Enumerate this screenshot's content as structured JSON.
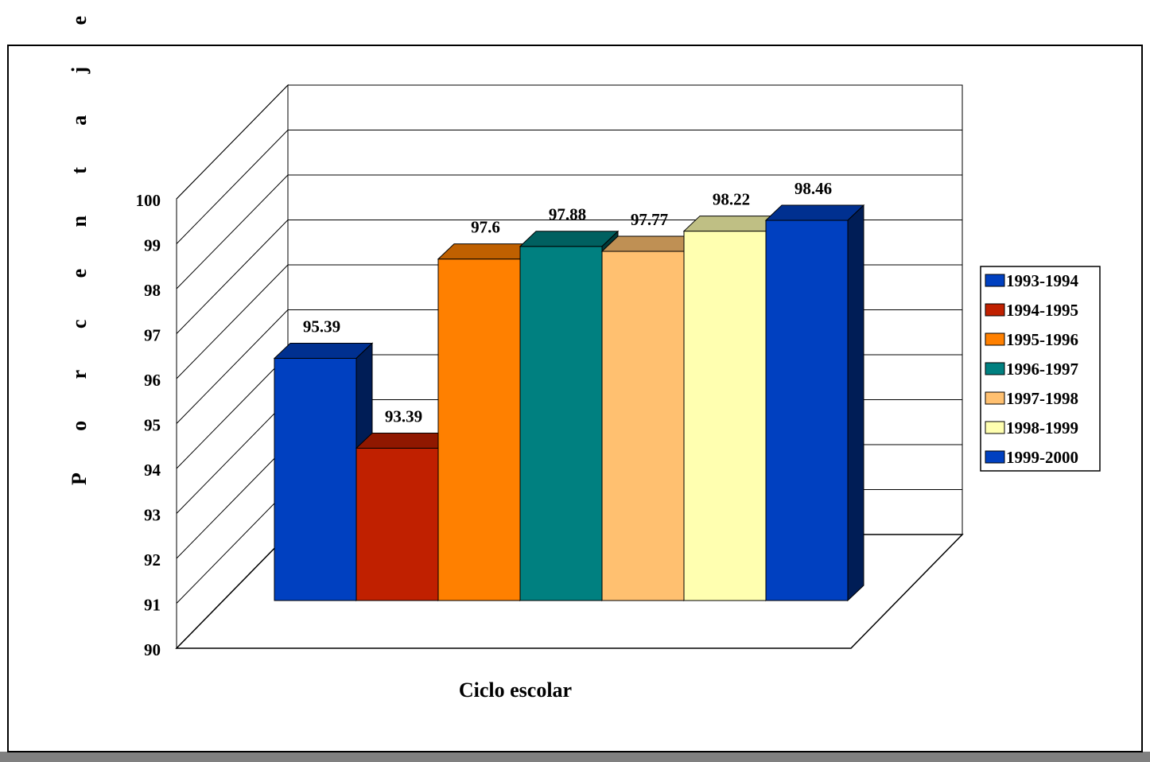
{
  "chart_data": {
    "type": "bar3d",
    "x_label": "Ciclo escolar",
    "y_label": "Porcentaje",
    "categories": [
      null
    ],
    "series": [
      {
        "name": "1993-1994",
        "color": "#0040c0",
        "values": [
          95.39
        ]
      },
      {
        "name": "1994-1995",
        "color": "#c02000",
        "values": [
          93.39
        ]
      },
      {
        "name": "1995-1996",
        "color": "#ff8000",
        "values": [
          97.6
        ]
      },
      {
        "name": "1996-1997",
        "color": "#008080",
        "values": [
          97.88
        ]
      },
      {
        "name": "1997-1998",
        "color": "#ffc070",
        "values": [
          97.77
        ]
      },
      {
        "name": "1998-1999",
        "color": "#ffffb0",
        "values": [
          98.22
        ]
      },
      {
        "name": "1999-2000",
        "color": "#0040c0",
        "values": [
          98.46
        ]
      }
    ],
    "ylim": [
      90,
      100
    ],
    "yticks": [
      90,
      91,
      92,
      93,
      94,
      95,
      96,
      97,
      98,
      99,
      100
    ],
    "grid": true,
    "legend": "right"
  }
}
